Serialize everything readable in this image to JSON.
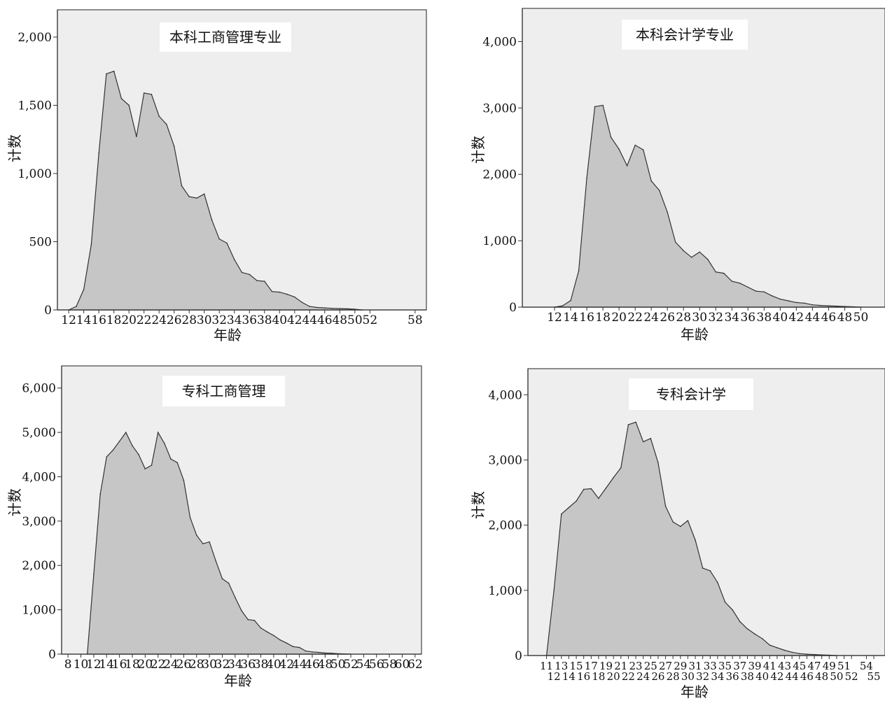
{
  "chart_data": [
    {
      "type": "area",
      "title": "本科工商管理专业",
      "xlabel": "年龄",
      "ylabel": "计数",
      "ylim": [
        0,
        2200
      ],
      "x_range": [
        10.5,
        59.5
      ],
      "yticks": [
        0,
        500,
        1000,
        1500,
        2000
      ],
      "ytick_labels": [
        "0",
        "500",
        "1,000",
        "1,500",
        "2,000"
      ],
      "xticks": [
        12,
        14,
        16,
        18,
        20,
        22,
        24,
        26,
        28,
        30,
        32,
        34,
        36,
        38,
        40,
        42,
        44,
        46,
        48,
        50,
        52,
        58
      ],
      "xtick_labels": [
        "12",
        "14",
        "16",
        "18",
        "20",
        "22",
        "24",
        "26",
        "28",
        "30",
        "32",
        "34",
        "36",
        "38",
        "40",
        "42",
        "44",
        "46",
        "48",
        "50",
        "52",
        "58"
      ],
      "x": [
        12,
        13,
        14,
        15,
        16,
        17,
        18,
        19,
        20,
        21,
        22,
        23,
        24,
        25,
        26,
        27,
        28,
        29,
        30,
        31,
        32,
        33,
        34,
        35,
        36,
        37,
        38,
        39,
        40,
        41,
        42,
        43,
        44,
        45,
        46,
        47,
        48,
        49,
        50,
        51
      ],
      "values": [
        0,
        25,
        150,
        480,
        1150,
        1730,
        1750,
        1550,
        1500,
        1270,
        1590,
        1580,
        1420,
        1360,
        1200,
        910,
        830,
        820,
        850,
        660,
        520,
        490,
        370,
        275,
        260,
        215,
        210,
        135,
        130,
        115,
        95,
        55,
        25,
        18,
        15,
        12,
        10,
        8,
        5,
        0
      ]
    },
    {
      "type": "area",
      "title": "本科会计学专业",
      "xlabel": "年龄",
      "ylabel": "计数",
      "ylim": [
        0,
        4500
      ],
      "x_range": [
        8,
        53
      ],
      "yticks": [
        0,
        1000,
        2000,
        3000,
        4000
      ],
      "ytick_labels": [
        "0",
        "1,000",
        "2,000",
        "3,000",
        "4,000"
      ],
      "xticks": [
        12,
        14,
        16,
        18,
        20,
        22,
        24,
        26,
        28,
        30,
        32,
        34,
        36,
        38,
        40,
        42,
        44,
        46,
        48,
        50
      ],
      "xtick_labels": [
        "12",
        "14",
        "16",
        "18",
        "20",
        "22",
        "24",
        "26",
        "28",
        "30",
        "32",
        "34",
        "36",
        "38",
        "40",
        "42",
        "44",
        "46",
        "48",
        "50"
      ],
      "x": [
        12,
        13,
        14,
        15,
        16,
        17,
        18,
        19,
        20,
        21,
        22,
        23,
        24,
        25,
        26,
        27,
        28,
        29,
        30,
        31,
        32,
        33,
        34,
        35,
        36,
        37,
        38,
        39,
        40,
        41,
        42,
        43,
        44,
        45,
        46,
        47,
        48,
        49,
        50
      ],
      "values": [
        0,
        20,
        100,
        550,
        1950,
        3020,
        3040,
        2560,
        2380,
        2130,
        2440,
        2370,
        1900,
        1760,
        1430,
        980,
        850,
        750,
        830,
        720,
        530,
        510,
        390,
        360,
        300,
        240,
        230,
        170,
        120,
        95,
        70,
        60,
        35,
        25,
        20,
        15,
        10,
        5,
        0
      ]
    },
    {
      "type": "area",
      "title": "专科工商管理",
      "xlabel": "年龄",
      "ylabel": "计数",
      "ylim": [
        0,
        6500
      ],
      "x_range": [
        7,
        63
      ],
      "yticks": [
        0,
        1000,
        2000,
        3000,
        4000,
        5000,
        6000
      ],
      "ytick_labels": [
        "0",
        "1,000",
        "2,000",
        "3,000",
        "4,000",
        "5,000",
        "6,000"
      ],
      "xticks": [
        8,
        10,
        12,
        14,
        16,
        18,
        20,
        22,
        24,
        26,
        28,
        30,
        32,
        34,
        36,
        38,
        40,
        42,
        44,
        46,
        48,
        50,
        52,
        54,
        56,
        58,
        60,
        62
      ],
      "xtick_labels": [
        "8",
        "10",
        "12",
        "14",
        "16",
        "18",
        "20",
        "22",
        "24",
        "26",
        "28",
        "30",
        "32",
        "34",
        "36",
        "38",
        "40",
        "42",
        "44",
        "46",
        "48",
        "50",
        "52",
        "54",
        "56",
        "58",
        "60",
        "62"
      ],
      "x": [
        11,
        12,
        13,
        14,
        15,
        16,
        17,
        18,
        19,
        20,
        21,
        22,
        23,
        24,
        25,
        26,
        27,
        28,
        29,
        30,
        31,
        32,
        33,
        34,
        35,
        36,
        37,
        38,
        39,
        40,
        41,
        42,
        43,
        44,
        45,
        46,
        47,
        48,
        49,
        50,
        51,
        52
      ],
      "values": [
        0,
        1800,
        3600,
        4450,
        4600,
        4800,
        5000,
        4700,
        4500,
        4180,
        4260,
        5000,
        4750,
        4400,
        4320,
        3920,
        3080,
        2680,
        2490,
        2530,
        2100,
        1700,
        1600,
        1280,
        980,
        780,
        760,
        590,
        500,
        420,
        320,
        250,
        170,
        150,
        70,
        50,
        40,
        25,
        20,
        10,
        5,
        0
      ]
    },
    {
      "type": "area",
      "title": "专科会计学",
      "xlabel": "年龄",
      "ylabel": "计数",
      "ylim": [
        0,
        4400
      ],
      "x_range": [
        8.5,
        56.5
      ],
      "yticks": [
        0,
        1000,
        2000,
        3000,
        4000
      ],
      "ytick_labels": [
        "0",
        "1,000",
        "2,000",
        "3,000",
        "4,000"
      ],
      "xticks": [
        11,
        12,
        13,
        14,
        15,
        16,
        17,
        18,
        19,
        20,
        21,
        22,
        23,
        24,
        25,
        26,
        27,
        28,
        29,
        30,
        31,
        32,
        33,
        34,
        35,
        36,
        37,
        38,
        39,
        40,
        41,
        42,
        43,
        44,
        45,
        46,
        47,
        48,
        49,
        50,
        51,
        52,
        54,
        55
      ],
      "xtick_labels": [
        "11",
        "12",
        "13",
        "14",
        "15",
        "16",
        "17",
        "18",
        "19",
        "20",
        "21",
        "22",
        "23",
        "24",
        "25",
        "26",
        "27",
        "28",
        "29",
        "30",
        "31",
        "32",
        "33",
        "34",
        "35",
        "36",
        "37",
        "38",
        "39",
        "40",
        "41",
        "42",
        "43",
        "44",
        "45",
        "46",
        "47",
        "48",
        "49",
        "50",
        "51",
        "52",
        "54",
        "55"
      ],
      "x": [
        11,
        12,
        13,
        14,
        15,
        16,
        17,
        18,
        19,
        20,
        21,
        22,
        23,
        24,
        25,
        26,
        27,
        28,
        29,
        30,
        31,
        32,
        33,
        34,
        35,
        36,
        37,
        38,
        39,
        40,
        41,
        42,
        43,
        44,
        45,
        46,
        47,
        48,
        49,
        50
      ],
      "values": [
        0,
        1000,
        2170,
        2270,
        2370,
        2550,
        2560,
        2410,
        2570,
        2730,
        2880,
        3540,
        3580,
        3280,
        3330,
        2960,
        2290,
        2050,
        1980,
        2070,
        1770,
        1340,
        1300,
        1120,
        820,
        700,
        520,
        410,
        330,
        260,
        160,
        120,
        80,
        50,
        30,
        20,
        15,
        10,
        5,
        0
      ]
    }
  ]
}
